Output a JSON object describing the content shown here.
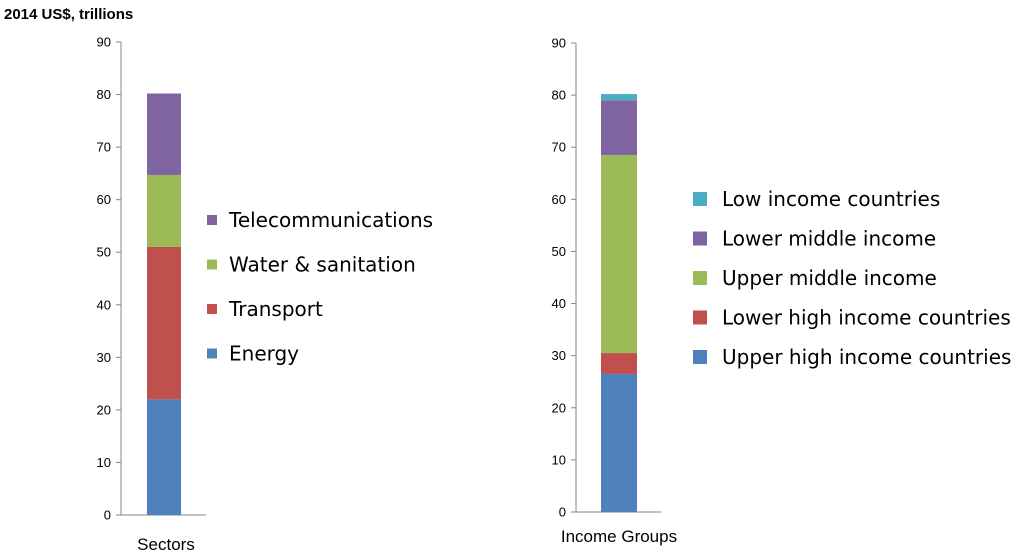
{
  "unit_label": "2014 US$, trillions",
  "chart_data": [
    {
      "type": "bar",
      "stacked": true,
      "categories": [
        "Sectors"
      ],
      "ylim": [
        0,
        90
      ],
      "yticks": [
        0,
        10,
        20,
        30,
        40,
        50,
        60,
        70,
        80,
        90
      ],
      "xlabel": "Sectors",
      "series": [
        {
          "name": "Energy",
          "values": [
            22
          ],
          "color": "#4f81bd"
        },
        {
          "name": "Transport",
          "values": [
            29
          ],
          "color": "#c0504d"
        },
        {
          "name": "Water & sanitation",
          "values": [
            13.7
          ],
          "color": "#9bbb59"
        },
        {
          "name": "Telecommunications",
          "values": [
            15.5
          ],
          "color": "#8064a2"
        }
      ],
      "legend_order": [
        "Telecommunications",
        "Water & sanitation",
        "Transport",
        "Energy"
      ],
      "legend_position": "right"
    },
    {
      "type": "bar",
      "stacked": true,
      "categories": [
        "Income Groups"
      ],
      "ylim": [
        0,
        90
      ],
      "yticks": [
        0,
        10,
        20,
        30,
        40,
        50,
        60,
        70,
        80,
        90
      ],
      "xlabel": "Income Groups",
      "series": [
        {
          "name": "Upper high income countries",
          "values": [
            26.5
          ],
          "color": "#4f81bd"
        },
        {
          "name": "Lower high income countries",
          "values": [
            4
          ],
          "color": "#c0504d"
        },
        {
          "name": "Upper middle income",
          "values": [
            38
          ],
          "color": "#9bbb59"
        },
        {
          "name": "Lower middle income",
          "values": [
            10.5
          ],
          "color": "#8064a2"
        },
        {
          "name": "Low income countries",
          "values": [
            1.2
          ],
          "color": "#4bacc6"
        }
      ],
      "legend_order": [
        "Low income countries",
        "Lower middle income",
        "Upper middle income",
        "Lower high income countries",
        "Upper high income countries"
      ],
      "legend_position": "right"
    }
  ]
}
